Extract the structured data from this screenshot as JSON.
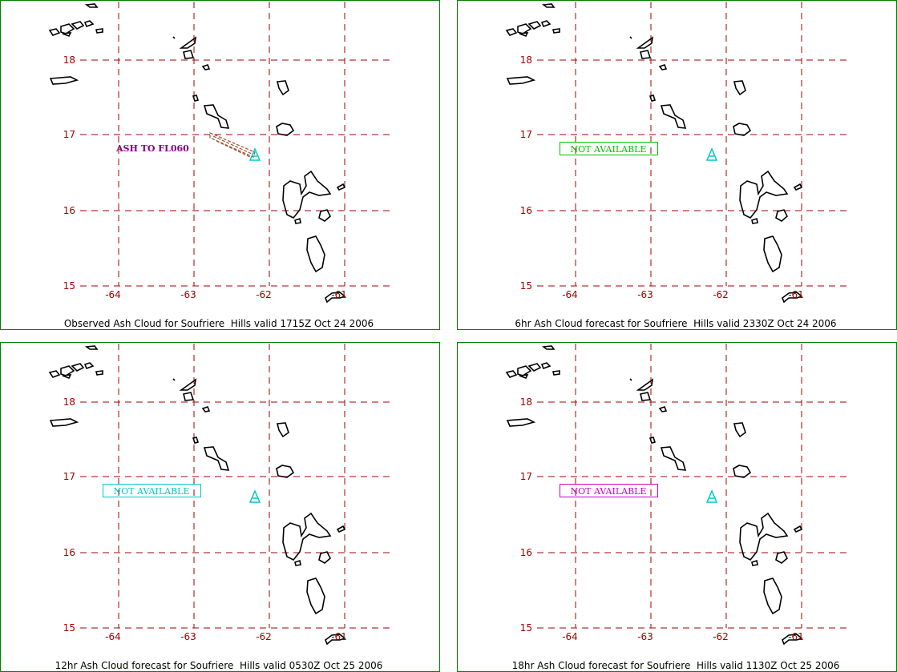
{
  "lat_labels": [
    "18",
    "17",
    "16",
    "15"
  ],
  "lon_labels": [
    "-64",
    "-63",
    "-62",
    "-61"
  ],
  "panels": [
    {
      "caption": "Observed Ash Cloud for Soufriere  Hills valid 1715Z Oct 24 2006",
      "annotation": "ASH TO FL060",
      "annotation_color": "#800080",
      "annotation_boxed": false
    },
    {
      "caption": "6hr Ash Cloud forecast for Soufriere  Hills valid 2330Z Oct 24 2006",
      "annotation": "NOT AVAILABLE",
      "annotation_color": "#00c000",
      "annotation_boxed": true
    },
    {
      "caption": "12hr Ash Cloud forecast for Soufriere  Hills valid 0530Z Oct 25 2006",
      "annotation": "NOT AVAILABLE",
      "annotation_color": "#00c8c8",
      "annotation_boxed": true
    },
    {
      "caption": "18hr Ash Cloud forecast for Soufriere  Hills valid 1130Z Oct 25 2006",
      "annotation": "NOT AVAILABLE",
      "annotation_color": "#c800c8",
      "annotation_boxed": true
    }
  ]
}
